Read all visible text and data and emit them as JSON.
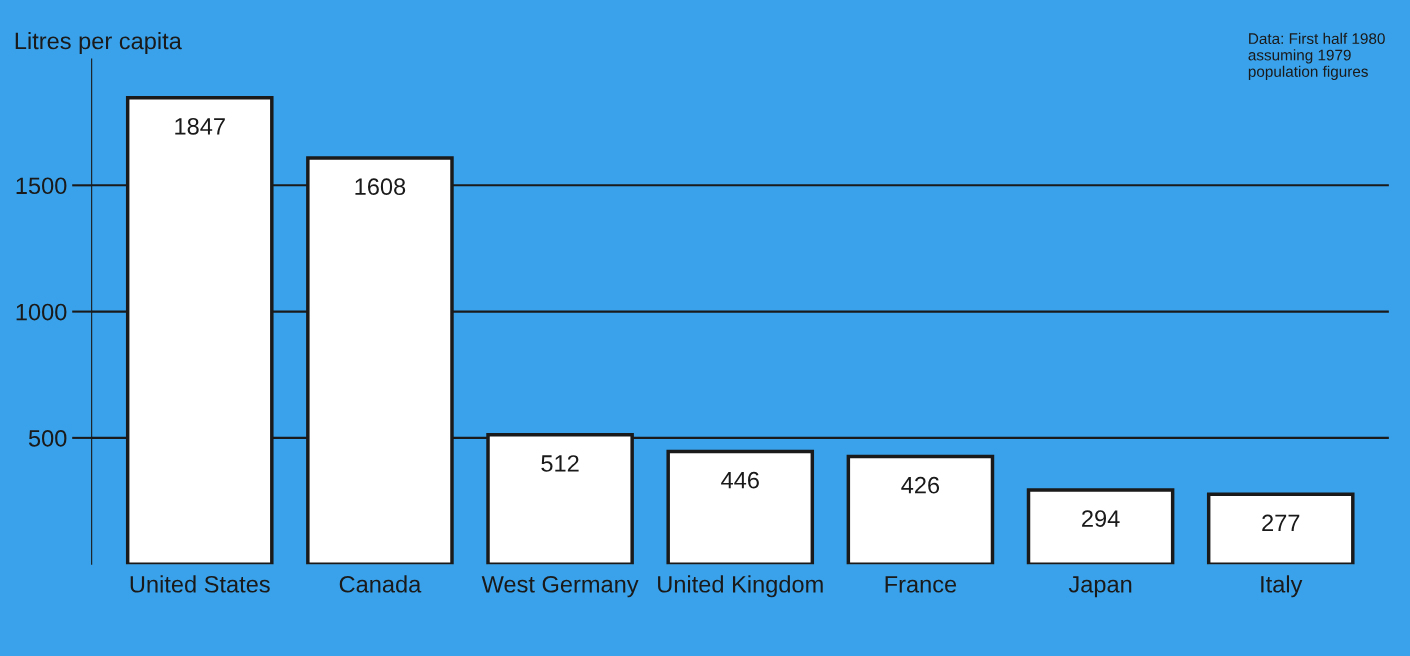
{
  "chart_data": {
    "type": "bar",
    "ylabel": "Litres per capita",
    "annotations": [
      "Data: First half 1980 assuming 1979 population figures"
    ],
    "categories": [
      "United States",
      "Canada",
      "West Germany",
      "United Kingdom",
      "France",
      "Japan",
      "Italy"
    ],
    "values": [
      1847,
      1608,
      512,
      446,
      426,
      294,
      277
    ],
    "color": "#ffffff",
    "ylim": [
      0,
      2000
    ],
    "yticks": [
      500,
      1000,
      1500
    ],
    "grid": "y",
    "data_labels": true
  }
}
